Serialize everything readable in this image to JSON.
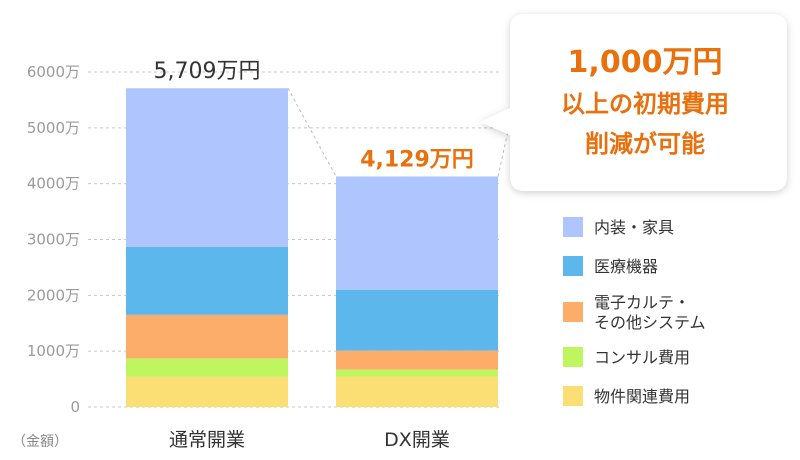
{
  "chart_data": {
    "type": "bar",
    "stacked": true,
    "categories": [
      "通常開業",
      "DX開業"
    ],
    "series": [
      {
        "name": "物件関連費用",
        "color": "#fcdf74",
        "values": [
          540,
          540
        ]
      },
      {
        "name": "コンサル費用",
        "color": "#bff55f",
        "values": [
          330,
          130
        ]
      },
      {
        "name": "電子カルテ・\nその他システム",
        "color": "#fdad6a",
        "values": [
          780,
          340
        ]
      },
      {
        "name": "医療機器",
        "color": "#5cb8ec",
        "values": [
          1220,
          1090
        ]
      },
      {
        "name": "内装・家具",
        "color": "#afc5fd",
        "values": [
          2839,
          2029
        ]
      }
    ],
    "totals": [
      "5,709万円",
      "4,129万円"
    ],
    "yticks": [
      "0",
      "1000万",
      "2000万",
      "3000万",
      "4000万",
      "5000万",
      "6000万"
    ],
    "ylim": [
      0,
      6000
    ],
    "ylabel": "（金額）",
    "legend_position": "right",
    "grid": true,
    "colors": {
      "accent": "#e8700d",
      "grid": "#c8c8c8"
    }
  },
  "callout": {
    "line1": "1,000万円",
    "line2": "以上の初期費用",
    "line3": "削減が可能"
  }
}
